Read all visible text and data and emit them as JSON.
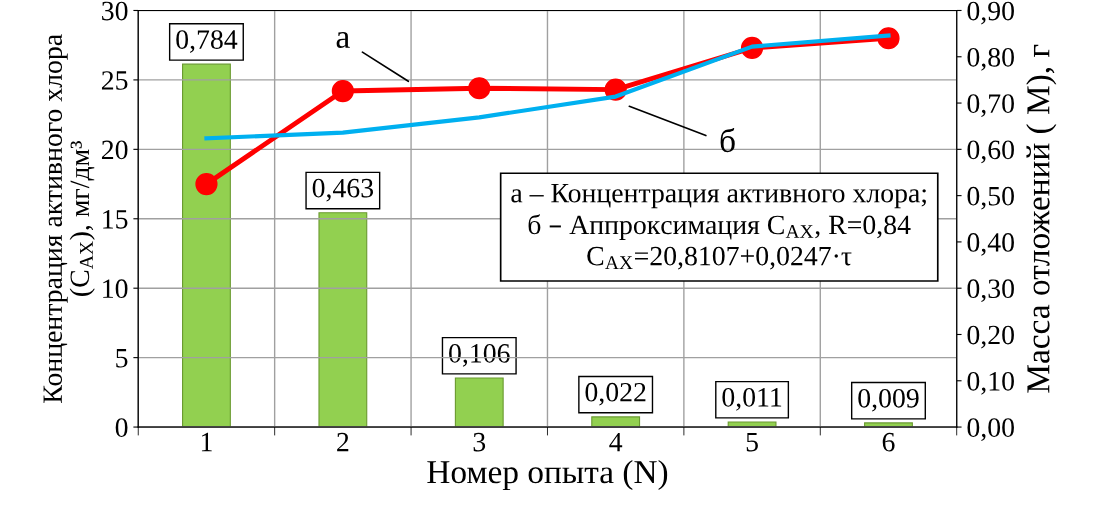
{
  "chart_data": {
    "type": "bar",
    "xlabel": "Номер опыта (N)",
    "ylabel": "Концентрация активного хлора\n(C$_{AX}$), мг/дм³",
    "y2label": "Масса отложений ( М), г",
    "categories": [
      "1",
      "2",
      "3",
      "4",
      "5",
      "6"
    ],
    "series": [
      {
        "axis": "y2",
        "color": "#92d050",
        "values": [
          0.784,
          0.463,
          0.106,
          0.022,
          0.011,
          0.009
        ],
        "value_labels": [
          "0,784",
          "0,463",
          "0,106",
          "0,022",
          "0,011",
          "0,009"
        ]
      },
      {
        "type": "line",
        "color": "#ff0000",
        "marker": "circle",
        "values": [
          17.5,
          24.2,
          24.4,
          24.3,
          27.3,
          28.0
        ]
      },
      {
        "type": "line",
        "color": "#00b0f0",
        "marker": "none",
        "values": [
          20.8,
          21.2,
          22.3,
          23.8,
          27.4,
          28.2
        ]
      }
    ],
    "ylim": [
      0,
      30
    ],
    "yticks": [
      0,
      5,
      10,
      15,
      20,
      25,
      30
    ],
    "y2lim": [
      0,
      0.9
    ],
    "y2ticks": [
      {
        "value": 0,
        "label": "0,00"
      },
      {
        "value": 0.1,
        "label": "0,10"
      },
      {
        "value": 0.2,
        "label": "0,20"
      },
      {
        "value": 0.3,
        "label": "0,30"
      },
      {
        "value": 0.4,
        "label": "0,40"
      },
      {
        "value": 0.5,
        "label": "0,50"
      },
      {
        "value": 0.6,
        "label": "0,60"
      },
      {
        "value": 0.7,
        "label": "0,70"
      },
      {
        "value": 0.8,
        "label": "0,80"
      },
      {
        "value": 0.9,
        "label": "0,90"
      }
    ],
    "grid": true,
    "legend": false,
    "annotations": [
      "а",
      "б",
      "а – Концентрация активного хлора;\nб – Аппроксимация C$_{AX}$, R=0,84\nC$_{AX}$=20,8107+0,0247·τ"
    ]
  }
}
